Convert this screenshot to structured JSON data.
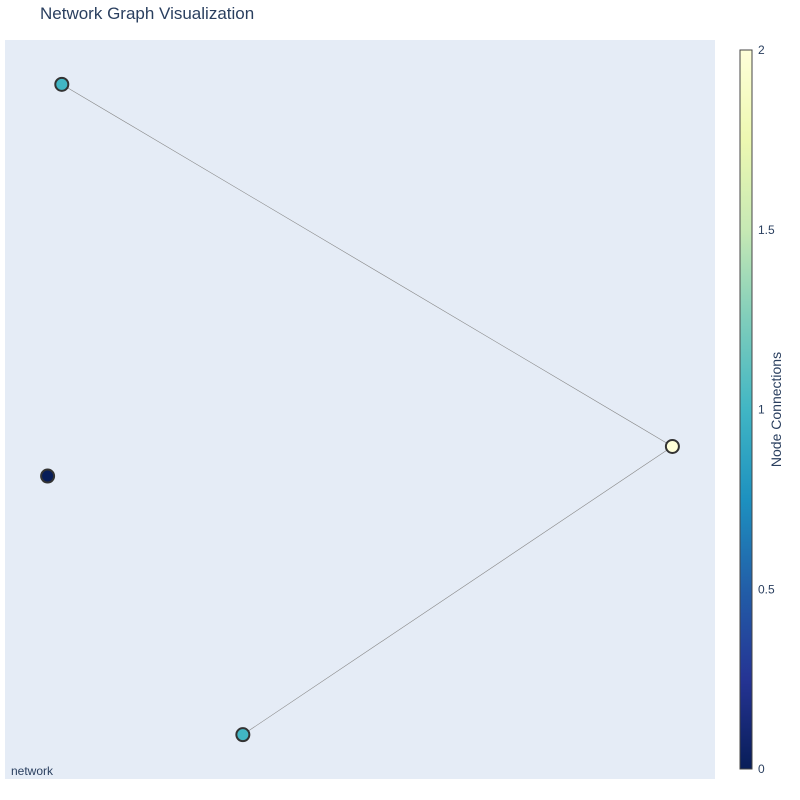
{
  "chart_data": {
    "type": "scatter",
    "title": "Network Graph Visualization",
    "xlabel": "",
    "ylabel": "",
    "grid": false,
    "xlim": [
      0,
      1
    ],
    "ylim": [
      0,
      1
    ],
    "nodes": [
      {
        "x": 0.08,
        "y": 0.94,
        "connections": 1
      },
      {
        "x": 0.94,
        "y": 0.45,
        "connections": 2
      },
      {
        "x": 0.06,
        "y": 0.41,
        "connections": 0
      },
      {
        "x": 0.335,
        "y": 0.06,
        "connections": 1
      }
    ],
    "edges": [
      [
        0,
        1
      ],
      [
        3,
        1
      ]
    ],
    "colorbar": {
      "title": "Node Connections",
      "range": [
        0,
        2
      ],
      "ticks": [
        "0",
        "0.5",
        "1",
        "1.5",
        "2"
      ],
      "tick_values": [
        0,
        0.5,
        1,
        1.5,
        2
      ],
      "colorscale": [
        "#081d58",
        "#253494",
        "#225ea8",
        "#1d91c0",
        "#41b6c4",
        "#7fcdbb",
        "#c7e9b4",
        "#edf8b1",
        "#ffffd9"
      ]
    },
    "annotation": "network",
    "colors": {
      "plot_bg": "#e5ecf6",
      "edge": "#888888",
      "node_outline": "#333333"
    }
  }
}
